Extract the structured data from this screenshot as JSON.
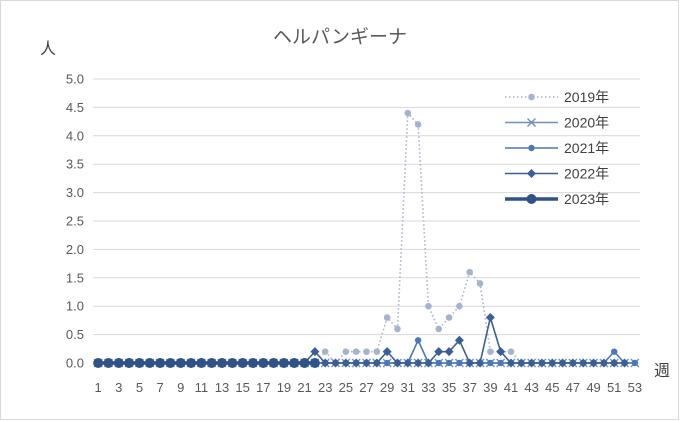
{
  "chart_data": {
    "type": "line",
    "title": "ヘルパンギーナ",
    "ylabel": "人",
    "xlabel": "週",
    "ylim": [
      0,
      5
    ],
    "yticks": [
      "0.0",
      "0.5",
      "1.0",
      "1.5",
      "2.0",
      "2.5",
      "3.0",
      "3.5",
      "4.0",
      "4.5",
      "5.0"
    ],
    "x": [
      1,
      2,
      3,
      4,
      5,
      6,
      7,
      8,
      9,
      10,
      11,
      12,
      13,
      14,
      15,
      16,
      17,
      18,
      19,
      20,
      21,
      22,
      23,
      24,
      25,
      26,
      27,
      28,
      29,
      30,
      31,
      32,
      33,
      34,
      35,
      36,
      37,
      38,
      39,
      40,
      41,
      42,
      43,
      44,
      45,
      46,
      47,
      48,
      49,
      50,
      51,
      52,
      53
    ],
    "xtick_labels": [
      "1",
      "3",
      "5",
      "7",
      "9",
      "11",
      "13",
      "15",
      "17",
      "19",
      "21",
      "23",
      "25",
      "27",
      "29",
      "31",
      "33",
      "35",
      "37",
      "39",
      "41",
      "43",
      "45",
      "47",
      "49",
      "51",
      "53"
    ],
    "grid": true,
    "legend_position": "right",
    "series": [
      {
        "name": "2019年",
        "style": "dotted-circle",
        "color": "#a5b4cc",
        "values": [
          0,
          0,
          0,
          0,
          0,
          0,
          0,
          0,
          0,
          0,
          0,
          0,
          0,
          0,
          0,
          0,
          0,
          0,
          0,
          0,
          0,
          0,
          0.2,
          0,
          0.2,
          0.2,
          0.2,
          0.2,
          0.8,
          0.6,
          4.4,
          4.2,
          1.0,
          0.6,
          0.8,
          1.0,
          1.6,
          1.4,
          0.2,
          0.2,
          0.2,
          0,
          0,
          0,
          0,
          0,
          0,
          0,
          0,
          0,
          null,
          null,
          null
        ]
      },
      {
        "name": "2020年",
        "style": "cross",
        "color": "#6f8fc0",
        "values": [
          0,
          0,
          0,
          0,
          0,
          0,
          0,
          0,
          0,
          0,
          0,
          0,
          0,
          0,
          0,
          0,
          0,
          0,
          0,
          0,
          0,
          0,
          0,
          0,
          0,
          0,
          0,
          0,
          0,
          0,
          0,
          0,
          0,
          0,
          0,
          0,
          0,
          0,
          0,
          0,
          0,
          0,
          0,
          0,
          0,
          0,
          0,
          0,
          0,
          0,
          0,
          0,
          0
        ]
      },
      {
        "name": "2021年",
        "style": "circle",
        "color": "#4a78b6",
        "values": [
          0,
          0,
          0,
          0,
          0,
          0,
          0,
          0,
          0,
          0,
          0,
          0,
          0,
          0,
          0,
          0,
          0,
          0,
          0,
          0,
          0,
          0,
          0,
          0,
          0,
          0,
          0,
          0,
          0,
          0,
          0,
          0.4,
          0,
          0,
          0,
          0,
          0,
          0,
          0,
          0,
          0,
          0,
          0,
          0,
          0,
          0,
          0,
          0,
          0,
          0,
          0.2,
          0,
          0
        ]
      },
      {
        "name": "2022年",
        "style": "diamond",
        "color": "#3a5f97",
        "values": [
          0,
          0,
          0,
          0,
          0,
          0,
          0,
          0,
          0,
          0,
          0,
          0,
          0,
          0,
          0,
          0,
          0,
          0,
          0,
          0,
          0,
          0.2,
          0,
          0,
          0,
          0,
          0,
          0,
          0.2,
          0,
          0,
          0,
          0,
          0.2,
          0.2,
          0.4,
          0,
          0,
          0.8,
          0.2,
          0,
          0,
          0,
          0,
          0,
          0,
          0,
          0,
          0,
          0,
          0,
          0,
          null
        ]
      },
      {
        "name": "2023年",
        "style": "thick-circle",
        "color": "#2f5387",
        "values": [
          0,
          0,
          0,
          0,
          0,
          0,
          0,
          0,
          0,
          0,
          0,
          0,
          0,
          0,
          0,
          0,
          0,
          0,
          0,
          0,
          0,
          0,
          null,
          null,
          null,
          null,
          null,
          null,
          null,
          null,
          null,
          null,
          null,
          null,
          null,
          null,
          null,
          null,
          null,
          null,
          null,
          null,
          null,
          null,
          null,
          null,
          null,
          null,
          null,
          null,
          null,
          null,
          null
        ]
      }
    ]
  }
}
